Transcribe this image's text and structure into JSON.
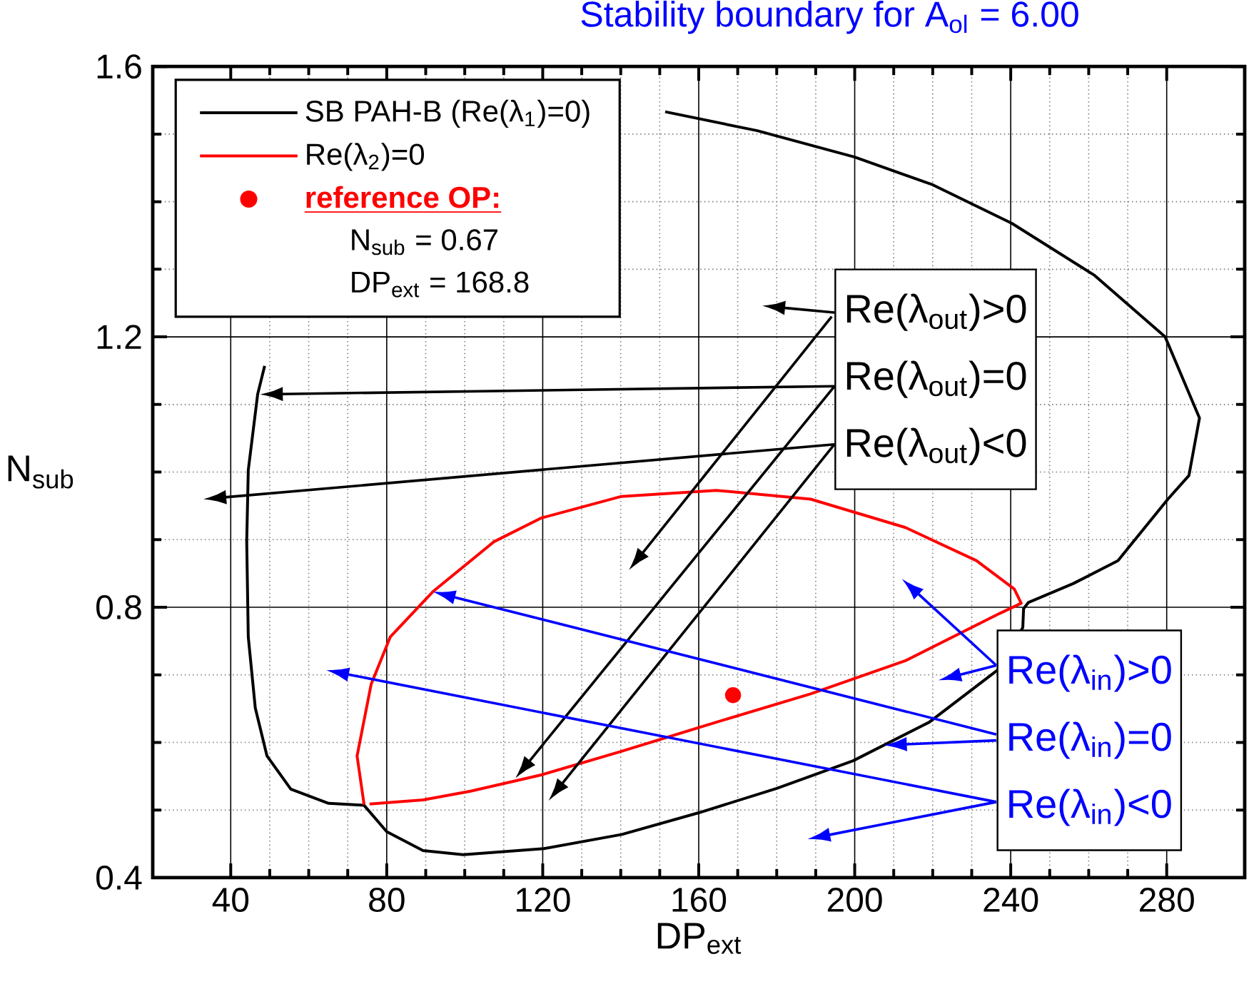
{
  "chart_data": {
    "type": "line",
    "title": "Stability boundary for A$_{ol}$ = 6.00",
    "xlabel": "DP$_{ext}$",
    "ylabel": "N$_{sub}$",
    "xlim": [
      20,
      300
    ],
    "ylim": [
      0.4,
      1.6
    ],
    "xticks": [
      40,
      80,
      120,
      160,
      200,
      240,
      280
    ],
    "yticks": [
      0.4,
      0.8,
      1.2,
      1.6
    ],
    "grid": true,
    "legend": "top left",
    "series": [
      {
        "name": "SB PAH-B (Re(λ$_{1}$)=0)",
        "color": "#000000",
        "x": [
          151.4,
          175.0,
          200.0,
          220.0,
          240.3,
          261.5,
          279.6,
          288.4,
          285.7,
          280.3,
          267.5,
          256.0,
          244.5,
          243.3,
          243.1,
          236.6,
          219.1,
          199.6,
          180.0,
          160.0,
          140.3,
          120.3,
          99.6,
          89.3,
          80.0,
          74.2,
          65.1,
          55.4,
          49.3,
          46.3,
          44.5,
          44.1,
          44.5,
          46.9,
          48.7
        ],
        "values": [
          1.533,
          1.505,
          1.466,
          1.425,
          1.368,
          1.291,
          1.2,
          1.08,
          0.995,
          0.96,
          0.869,
          0.835,
          0.807,
          0.798,
          0.77,
          0.707,
          0.63,
          0.573,
          0.532,
          0.496,
          0.464,
          0.443,
          0.434,
          0.44,
          0.468,
          0.507,
          0.51,
          0.531,
          0.58,
          0.651,
          0.756,
          0.897,
          1.003,
          1.115,
          1.157
        ]
      },
      {
        "name": "Re(λ$_{2}$)=0",
        "color": "#ff0000",
        "x": [
          74.2,
          72.4,
          76.0,
          80.9,
          91.8,
          107.5,
          119.6,
          140.2,
          164.5,
          188.7,
          213.0,
          231.2,
          240.9,
          242.7,
          237.2,
          213.0,
          188.7,
          164.5,
          140.2,
          119.6,
          101.5,
          89.3,
          75.6
        ],
        "values": [
          0.508,
          0.58,
          0.686,
          0.756,
          0.823,
          0.897,
          0.932,
          0.964,
          0.973,
          0.96,
          0.918,
          0.869,
          0.827,
          0.806,
          0.791,
          0.721,
          0.672,
          0.63,
          0.587,
          0.552,
          0.528,
          0.515,
          0.509
        ]
      },
      {
        "name": "reference OP:",
        "type": "scatter",
        "color": "#ff0000",
        "x": [
          168.8
        ],
        "values": [
          0.67
        ]
      }
    ],
    "annotations": [
      "N$_{sub}$   = 0.67",
      "DP$_{ext}$ = 168.8",
      "Re(λ$_{out}$)>0",
      "Re(λ$_{out}$)=0",
      "Re(λ$_{out}$)<0",
      "Re(λ$_{in}$)>0",
      "Re(λ$_{in}$)=0",
      "Re(λ$_{in}$)<0"
    ]
  }
}
